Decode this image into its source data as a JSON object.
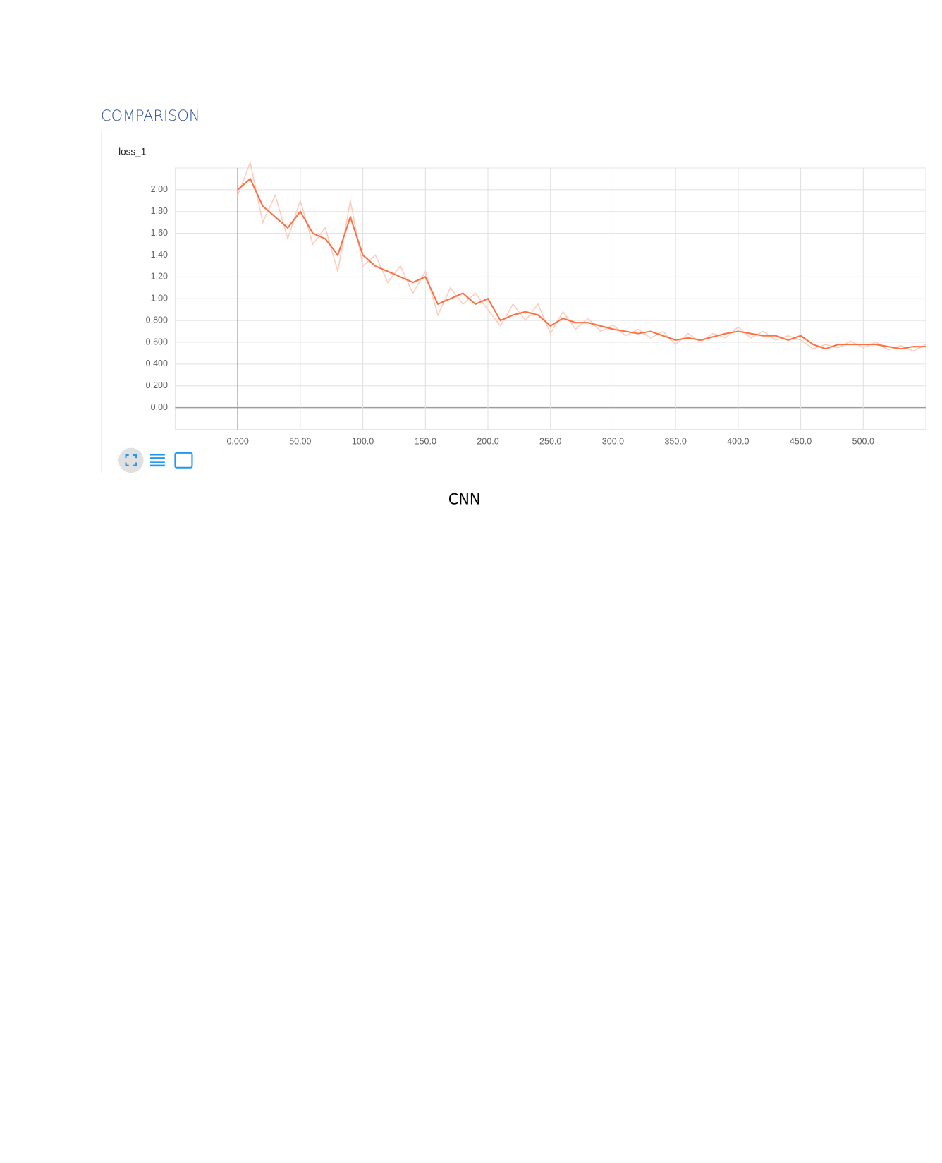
{
  "heading": "COMPARISON",
  "caption": "CNN",
  "chart_data": {
    "type": "line",
    "title": "loss_1",
    "x": [
      0,
      10,
      20,
      30,
      40,
      50,
      60,
      70,
      80,
      90,
      100,
      110,
      120,
      130,
      140,
      150,
      160,
      170,
      180,
      190,
      200,
      210,
      220,
      230,
      240,
      250,
      260,
      270,
      280,
      290,
      300,
      310,
      320,
      330,
      340,
      350,
      360,
      370,
      380,
      390,
      400,
      410,
      420,
      430,
      440,
      450,
      460,
      470,
      480,
      490,
      500,
      510,
      520,
      530,
      540,
      550
    ],
    "series": [
      {
        "color": "#ffccbc",
        "values": [
          1.95,
          2.25,
          1.7,
          1.95,
          1.55,
          1.9,
          1.5,
          1.65,
          1.25,
          1.9,
          1.3,
          1.4,
          1.15,
          1.3,
          1.05,
          1.25,
          0.85,
          1.1,
          0.95,
          1.05,
          0.9,
          0.75,
          0.95,
          0.8,
          0.95,
          0.68,
          0.88,
          0.72,
          0.82,
          0.7,
          0.76,
          0.66,
          0.72,
          0.64,
          0.7,
          0.58,
          0.68,
          0.6,
          0.68,
          0.64,
          0.74,
          0.64,
          0.7,
          0.62,
          0.66,
          0.62,
          0.54,
          0.58,
          0.55,
          0.61,
          0.55,
          0.6,
          0.53,
          0.57,
          0.52,
          0.58
        ]
      },
      {
        "color": "#ff7043",
        "values": [
          2.0,
          2.1,
          1.85,
          1.75,
          1.65,
          1.8,
          1.6,
          1.55,
          1.4,
          1.75,
          1.4,
          1.3,
          1.25,
          1.2,
          1.15,
          1.2,
          0.95,
          1.0,
          1.05,
          0.95,
          1.0,
          0.8,
          0.85,
          0.88,
          0.85,
          0.75,
          0.82,
          0.78,
          0.78,
          0.75,
          0.72,
          0.7,
          0.68,
          0.7,
          0.66,
          0.62,
          0.64,
          0.62,
          0.65,
          0.68,
          0.7,
          0.68,
          0.66,
          0.66,
          0.62,
          0.66,
          0.58,
          0.54,
          0.58,
          0.58,
          0.58,
          0.58,
          0.56,
          0.54,
          0.56,
          0.56
        ]
      }
    ],
    "xlim": [
      -50,
      550
    ],
    "ylim": [
      -0.2,
      2.2
    ],
    "xticks": [
      {
        "value": 0,
        "label": "0.000"
      },
      {
        "value": 50,
        "label": "50.00"
      },
      {
        "value": 100,
        "label": "100.0"
      },
      {
        "value": 150,
        "label": "150.0"
      },
      {
        "value": 200,
        "label": "200.0"
      },
      {
        "value": 250,
        "label": "250.0"
      },
      {
        "value": 300,
        "label": "300.0"
      },
      {
        "value": 350,
        "label": "350.0"
      },
      {
        "value": 400,
        "label": "400.0"
      },
      {
        "value": 450,
        "label": "450.0"
      },
      {
        "value": 500,
        "label": "500.0"
      }
    ],
    "yticks": [
      {
        "value": 0,
        "label": "0.00"
      },
      {
        "value": 0.2,
        "label": "0.200"
      },
      {
        "value": 0.4,
        "label": "0.400"
      },
      {
        "value": 0.6,
        "label": "0.600"
      },
      {
        "value": 0.8,
        "label": "0.800"
      },
      {
        "value": 1,
        "label": "1.00"
      },
      {
        "value": 1.2,
        "label": "1.20"
      },
      {
        "value": 1.4,
        "label": "1.40"
      },
      {
        "value": 1.6,
        "label": "1.60"
      },
      {
        "value": 1.8,
        "label": "1.80"
      },
      {
        "value": 2,
        "label": "2.00"
      }
    ],
    "grid": true
  }
}
